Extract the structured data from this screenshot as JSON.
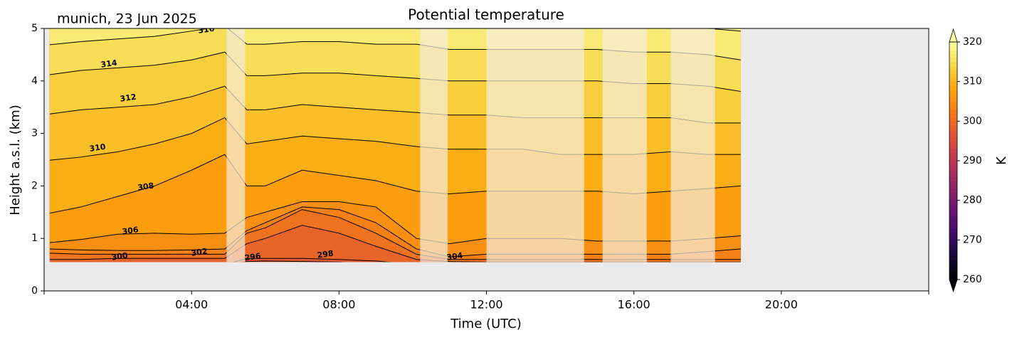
{
  "chart_data": {
    "type": "contour",
    "title": "Potential temperature",
    "subtitle": "munich, 23 Jun 2025",
    "x_label": "Time (UTC)",
    "y_label": "Height a.s.l. (km)",
    "colorbar_label": "K",
    "colormap": "inferno",
    "clim": [
      260,
      320
    ],
    "colorbar_ticks": [
      260,
      270,
      280,
      290,
      300,
      310,
      320
    ],
    "xlim": [
      0,
      24
    ],
    "xticks": [
      {
        "value": 4,
        "label": "04:00"
      },
      {
        "value": 8,
        "label": "08:00"
      },
      {
        "value": 12,
        "label": "12:00"
      },
      {
        "value": 16,
        "label": "16:00"
      },
      {
        "value": 20,
        "label": "20:00"
      }
    ],
    "ylim": [
      0,
      5
    ],
    "yticks": [
      0,
      1,
      2,
      3,
      4,
      5
    ],
    "lowest_height": 0.55,
    "background_color": "#ebebeb",
    "x": [
      0.15,
      1,
      2,
      3,
      4,
      4.9,
      5.5,
      6,
      7,
      8,
      9,
      10.1,
      11,
      12,
      13,
      14,
      15,
      16,
      17,
      18,
      18.9
    ],
    "levels": [
      296,
      298,
      300,
      302,
      304,
      306,
      308,
      310,
      312,
      314,
      316,
      318
    ],
    "heights": [
      [
        0.5,
        0.5,
        0.5,
        0.5,
        0.5,
        0.5,
        0.56,
        0.57,
        0.56,
        0.55,
        0.5,
        0.5,
        0.5,
        0.5,
        0.5,
        0.5,
        0.5,
        0.5,
        0.5,
        0.5,
        0.5
      ],
      [
        0.5,
        0.5,
        0.5,
        0.5,
        0.5,
        0.5,
        0.62,
        0.62,
        0.62,
        0.6,
        0.57,
        0.5,
        0.5,
        0.5,
        0.5,
        0.5,
        0.5,
        0.5,
        0.5,
        0.5,
        0.5
      ],
      [
        0.6,
        0.6,
        0.62,
        0.62,
        0.62,
        0.62,
        0.9,
        1.0,
        1.25,
        1.1,
        0.85,
        0.6,
        0.56,
        0.55,
        0.55,
        0.55,
        0.55,
        0.55,
        0.55,
        0.55,
        0.55
      ],
      [
        0.72,
        0.7,
        0.7,
        0.7,
        0.7,
        0.7,
        1.1,
        1.2,
        1.55,
        1.4,
        1.1,
        0.7,
        0.6,
        0.6,
        0.6,
        0.6,
        0.6,
        0.6,
        0.6,
        0.6,
        0.6
      ],
      [
        0.8,
        0.78,
        0.77,
        0.77,
        0.78,
        0.8,
        1.15,
        1.3,
        1.6,
        1.55,
        1.3,
        0.8,
        0.65,
        0.7,
        0.7,
        0.7,
        0.7,
        0.7,
        0.7,
        0.75,
        0.8
      ],
      [
        0.92,
        0.98,
        1.08,
        1.1,
        1.08,
        1.1,
        1.4,
        1.5,
        1.7,
        1.7,
        1.6,
        1.0,
        0.9,
        1.0,
        1.0,
        1.0,
        0.95,
        0.95,
        0.95,
        1.0,
        1.05
      ],
      [
        1.48,
        1.6,
        1.8,
        2.0,
        2.3,
        2.6,
        2.0,
        2.0,
        2.3,
        2.2,
        2.1,
        1.9,
        1.85,
        1.9,
        1.9,
        1.9,
        1.9,
        1.85,
        1.9,
        1.95,
        2.0
      ],
      [
        2.49,
        2.55,
        2.65,
        2.8,
        3.0,
        3.3,
        2.8,
        2.85,
        2.95,
        2.9,
        2.85,
        2.75,
        2.7,
        2.7,
        2.7,
        2.6,
        2.6,
        2.6,
        2.65,
        2.6,
        2.6
      ],
      [
        3.37,
        3.45,
        3.5,
        3.55,
        3.7,
        3.9,
        3.45,
        3.45,
        3.55,
        3.5,
        3.45,
        3.4,
        3.35,
        3.35,
        3.3,
        3.3,
        3.3,
        3.3,
        3.3,
        3.2,
        3.2
      ],
      [
        4.12,
        4.2,
        4.25,
        4.3,
        4.4,
        4.55,
        4.1,
        4.1,
        4.15,
        4.15,
        4.1,
        4.05,
        4.0,
        4.0,
        4.0,
        4.0,
        4.0,
        3.95,
        3.95,
        3.9,
        3.8
      ],
      [
        4.69,
        4.75,
        4.8,
        4.85,
        4.95,
        5.05,
        4.7,
        4.7,
        4.75,
        4.75,
        4.7,
        4.7,
        4.6,
        4.6,
        4.6,
        4.6,
        4.6,
        4.55,
        4.55,
        4.5,
        4.4
      ],
      [
        5.1,
        5.2,
        5.2,
        5.2,
        5.3,
        5.4,
        5.25,
        5.2,
        5.2,
        5.2,
        5.2,
        5.2,
        5.1,
        5.1,
        5.1,
        5.1,
        5.1,
        5.05,
        5.05,
        5.0,
        4.95
      ]
    ],
    "masked_intervals": [
      [
        4.95,
        5.45
      ],
      [
        10.2,
        10.95
      ],
      [
        12.0,
        14.65
      ],
      [
        15.15,
        16.35
      ],
      [
        17.0,
        18.2
      ]
    ],
    "contour_labels": [
      {
        "value": 316,
        "x": 4.4,
        "y": 4.97
      },
      {
        "value": 314,
        "x": 1.76,
        "y": 4.32
      },
      {
        "value": 312,
        "x": 2.28,
        "y": 3.67
      },
      {
        "value": 310,
        "x": 1.45,
        "y": 2.72
      },
      {
        "value": 308,
        "x": 2.76,
        "y": 1.98
      },
      {
        "value": 306,
        "x": 2.34,
        "y": 1.14
      },
      {
        "value": 300,
        "x": 2.05,
        "y": 0.65
      },
      {
        "value": 302,
        "x": 4.21,
        "y": 0.73
      },
      {
        "value": 296,
        "x": 5.66,
        "y": 0.64
      },
      {
        "value": 298,
        "x": 7.63,
        "y": 0.69
      },
      {
        "value": 304,
        "x": 11.14,
        "y": 0.65
      }
    ]
  }
}
